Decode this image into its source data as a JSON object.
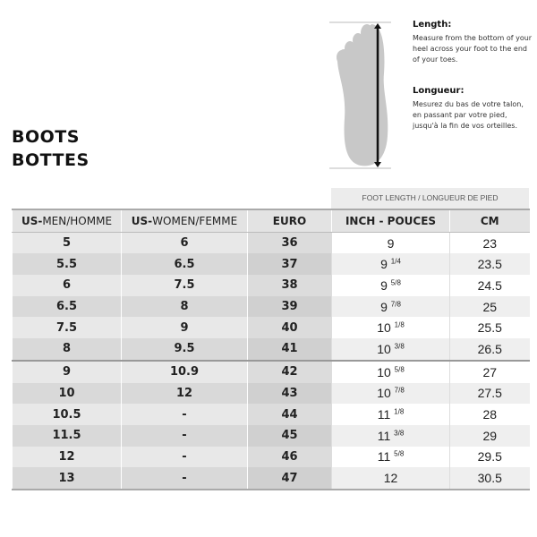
{
  "title_en": "BOOTS",
  "title_fr": "BOTTES",
  "length": {
    "heading": "Length:",
    "text": "Measure from the bottom of your heel across your foot to the end of your toes."
  },
  "longueur": {
    "heading": "Longueur:",
    "text": "Mesurez du bas de votre talon, en passant par votre pied, jusqu'à la fin de vos orteilles."
  },
  "foot_length_header": "FOOT LENGTH / LONGUEUR DE PIED",
  "columns": [
    {
      "bold": "US-",
      "rest": "MEN/HOMME"
    },
    {
      "bold": "US-",
      "rest": "WOMEN/FEMME"
    },
    {
      "bold": "EURO",
      "rest": ""
    },
    {
      "bold": "INCH - POUCES",
      "rest": ""
    },
    {
      "bold": "CM",
      "rest": ""
    }
  ],
  "rows": [
    {
      "men": "5",
      "women": "6",
      "euro": "36",
      "inch_whole": "9",
      "inch_frac": "",
      "cm": "23"
    },
    {
      "men": "5.5",
      "women": "6.5",
      "euro": "37",
      "inch_whole": "9",
      "inch_frac": "1/4",
      "cm": "23.5"
    },
    {
      "men": "6",
      "women": "7.5",
      "euro": "38",
      "inch_whole": "9",
      "inch_frac": "5/8",
      "cm": "24.5"
    },
    {
      "men": "6.5",
      "women": "8",
      "euro": "39",
      "inch_whole": "9",
      "inch_frac": "7/8",
      "cm": "25"
    },
    {
      "men": "7.5",
      "women": "9",
      "euro": "40",
      "inch_whole": "10",
      "inch_frac": "1/8",
      "cm": "25.5"
    },
    {
      "men": "8",
      "women": "9.5",
      "euro": "41",
      "inch_whole": "10",
      "inch_frac": "3/8",
      "cm": "26.5"
    },
    {
      "men": "9",
      "women": "10.9",
      "euro": "42",
      "inch_whole": "10",
      "inch_frac": "5/8",
      "cm": "27"
    },
    {
      "men": "10",
      "women": "12",
      "euro": "43",
      "inch_whole": "10",
      "inch_frac": "7/8",
      "cm": "27.5"
    },
    {
      "men": "10.5",
      "women": "-",
      "euro": "44",
      "inch_whole": "11",
      "inch_frac": "1/8",
      "cm": "28"
    },
    {
      "men": "11.5",
      "women": "-",
      "euro": "45",
      "inch_whole": "11",
      "inch_frac": "3/8",
      "cm": "29"
    },
    {
      "men": "12",
      "women": "-",
      "euro": "46",
      "inch_whole": "11",
      "inch_frac": "5/8",
      "cm": "29.5"
    },
    {
      "men": "13",
      "women": "-",
      "euro": "47",
      "inch_whole": "12",
      "inch_frac": "",
      "cm": "30.5"
    }
  ]
}
